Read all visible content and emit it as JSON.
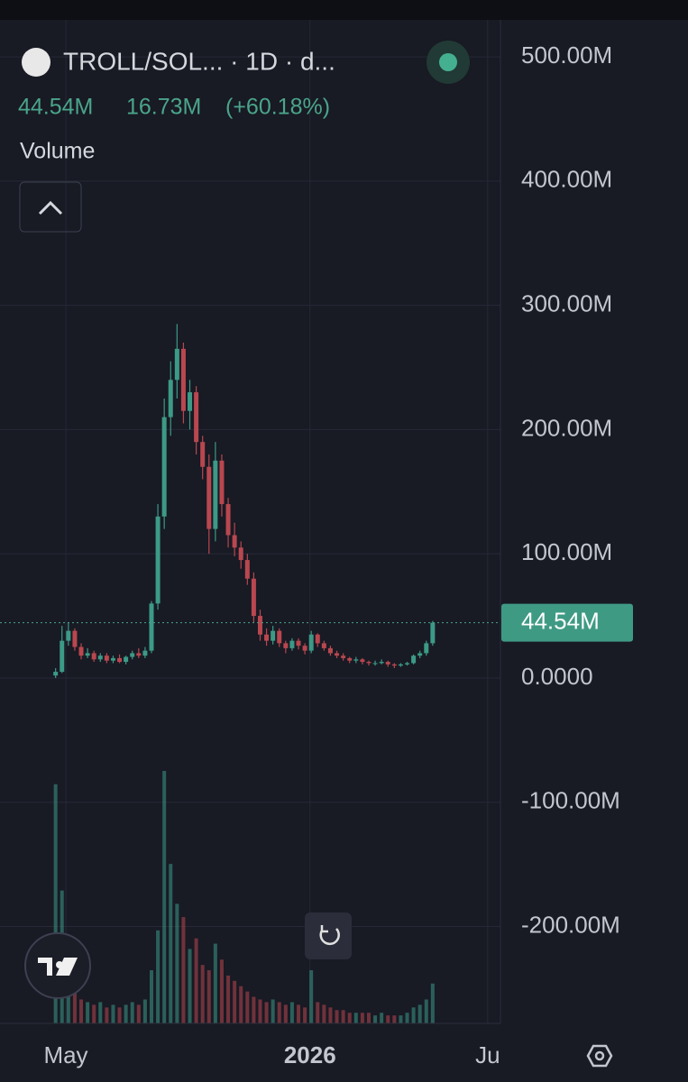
{
  "header": {
    "title": "TROLL/SOL... · 1D · d...",
    "last": "44.54M",
    "change": "16.73M",
    "change_pct": "(+60.18%)",
    "indicator": "Volume"
  },
  "chart_data": {
    "type": "candlestick",
    "up_color": "#3c9a86",
    "down_color": "#b9474f",
    "grid": true,
    "ylim": [
      -278,
      524
    ],
    "yticks": [
      {
        "value": 500,
        "label": "500.00M"
      },
      {
        "value": 400,
        "label": "400.00M"
      },
      {
        "value": 300,
        "label": "300.00M"
      },
      {
        "value": 200,
        "label": "200.00M"
      },
      {
        "value": 100,
        "label": "100.00M"
      },
      {
        "value": 0,
        "label": "0.0000"
      },
      {
        "value": -100,
        "label": "-100.00M"
      },
      {
        "value": -200,
        "label": "-200.00M"
      }
    ],
    "xlim": [
      -8.7,
      69.6
    ],
    "xticks": [
      {
        "value": 1.6,
        "label": "May"
      },
      {
        "value": 39.8,
        "label": "2026"
      },
      {
        "value": 67.6,
        "label": "Ju"
      }
    ],
    "last_price": {
      "value": 44.54,
      "label": "44.54M"
    },
    "open": [
      2,
      5,
      30,
      38,
      25,
      18,
      20,
      15,
      18,
      14,
      16,
      13,
      17,
      20,
      18,
      22,
      60,
      130,
      210,
      240,
      265,
      215,
      230,
      190,
      170,
      120,
      175,
      140,
      115,
      105,
      95,
      80,
      50,
      35,
      30,
      38,
      28,
      24,
      30,
      26,
      22,
      35,
      28,
      24,
      20,
      18,
      16,
      14,
      15,
      13,
      12,
      12,
      13,
      11,
      10,
      11,
      12,
      18,
      20,
      28
    ],
    "high": [
      8,
      42,
      45,
      40,
      28,
      24,
      22,
      20,
      20,
      18,
      19,
      18,
      22,
      24,
      25,
      62,
      140,
      225,
      255,
      285,
      270,
      240,
      235,
      195,
      180,
      190,
      180,
      145,
      125,
      110,
      100,
      85,
      55,
      40,
      42,
      40,
      30,
      32,
      32,
      28,
      38,
      36,
      30,
      26,
      22,
      20,
      17,
      17,
      16,
      14,
      14,
      15,
      14,
      12,
      12,
      13,
      19,
      22,
      30,
      46
    ],
    "low": [
      0,
      4,
      26,
      22,
      15,
      16,
      13,
      13,
      12,
      12,
      12,
      11,
      15,
      16,
      16,
      20,
      55,
      120,
      195,
      225,
      205,
      200,
      180,
      160,
      100,
      110,
      130,
      105,
      98,
      88,
      75,
      45,
      30,
      26,
      27,
      25,
      20,
      22,
      23,
      19,
      20,
      25,
      22,
      18,
      16,
      14,
      12,
      12,
      11,
      10,
      10,
      11,
      9,
      8,
      9,
      10,
      11,
      16,
      18,
      26
    ],
    "close": [
      5,
      30,
      38,
      25,
      18,
      20,
      15,
      18,
      14,
      16,
      13,
      17,
      20,
      18,
      22,
      60,
      130,
      210,
      240,
      265,
      215,
      230,
      190,
      170,
      120,
      175,
      140,
      115,
      105,
      95,
      80,
      50,
      35,
      30,
      38,
      28,
      24,
      30,
      26,
      22,
      35,
      28,
      24,
      20,
      18,
      16,
      14,
      15,
      13,
      12,
      12,
      13,
      11,
      10,
      11,
      12,
      18,
      20,
      28,
      44.54
    ],
    "volume": [
      90,
      50,
      30,
      12,
      9,
      8,
      7,
      8,
      6,
      7,
      6,
      7,
      8,
      7,
      9,
      20,
      35,
      95,
      60,
      45,
      40,
      28,
      32,
      22,
      20,
      30,
      24,
      18,
      16,
      14,
      12,
      10,
      9,
      8,
      9,
      8,
      7,
      8,
      7,
      6,
      20,
      8,
      7,
      6,
      5,
      5,
      4,
      4,
      4,
      4,
      3,
      4,
      3,
      3,
      3,
      4,
      6,
      7,
      9,
      15
    ]
  }
}
